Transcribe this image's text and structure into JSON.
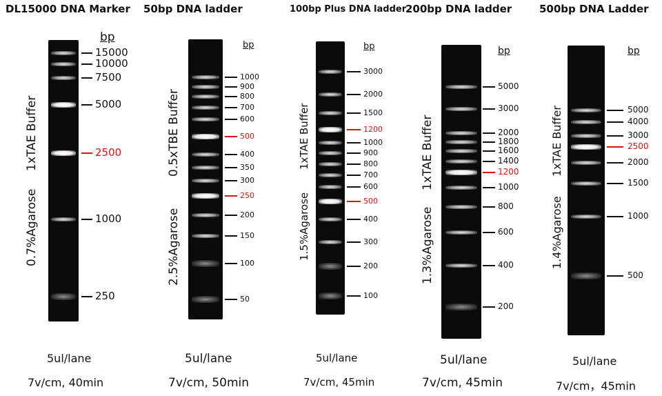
{
  "panels": [
    {
      "title": "DL15000 DNA Marker",
      "bp_label": "bp",
      "buffer": "1xTAE Buffer",
      "agarose": "0.7%Agarose",
      "lane_volume": "5ul/lane",
      "run_conditions": "7v/cm, 40min",
      "markers": [
        {
          "label": "15000",
          "highlight": false
        },
        {
          "label": "10000",
          "highlight": false
        },
        {
          "label": "7500",
          "highlight": false
        },
        {
          "label": "5000",
          "highlight": false
        },
        {
          "label": "2500",
          "highlight": true
        },
        {
          "label": "1000",
          "highlight": false
        },
        {
          "label": "250",
          "highlight": false
        }
      ]
    },
    {
      "title": "50bp DNA ladder",
      "bp_label": "bp",
      "buffer": "0.5xTBE Buffer",
      "agarose": "2.5%Agarose",
      "lane_volume": "5ul/lane",
      "run_conditions": "7v/cm, 50min",
      "markers": [
        {
          "label": "1000",
          "highlight": false
        },
        {
          "label": "900",
          "highlight": false
        },
        {
          "label": "800",
          "highlight": false
        },
        {
          "label": "700",
          "highlight": false
        },
        {
          "label": "600",
          "highlight": false
        },
        {
          "label": "500",
          "highlight": true
        },
        {
          "label": "400",
          "highlight": false
        },
        {
          "label": "350",
          "highlight": false
        },
        {
          "label": "300",
          "highlight": false
        },
        {
          "label": "250",
          "highlight": true
        },
        {
          "label": "200",
          "highlight": false
        },
        {
          "label": "150",
          "highlight": false
        },
        {
          "label": "100",
          "highlight": false
        },
        {
          "label": "50",
          "highlight": false
        }
      ]
    },
    {
      "title": "100bp Plus DNA ladder",
      "bp_label": "bp",
      "buffer": "1xTAE Buffer",
      "agarose": "1.5%Agarose",
      "lane_volume": "5ul/lane",
      "run_conditions": "7v/cm, 45min",
      "markers": [
        {
          "label": "3000",
          "highlight": false
        },
        {
          "label": "2000",
          "highlight": false
        },
        {
          "label": "1500",
          "highlight": false
        },
        {
          "label": "1200",
          "highlight": true
        },
        {
          "label": "1000",
          "highlight": false
        },
        {
          "label": "900",
          "highlight": false
        },
        {
          "label": "800",
          "highlight": false
        },
        {
          "label": "700",
          "highlight": false
        },
        {
          "label": "600",
          "highlight": false
        },
        {
          "label": "500",
          "highlight": true
        },
        {
          "label": "400",
          "highlight": false
        },
        {
          "label": "300",
          "highlight": false
        },
        {
          "label": "200",
          "highlight": false
        },
        {
          "label": "100",
          "highlight": false
        }
      ]
    },
    {
      "title": "200bp DNA ladder",
      "bp_label": "bp",
      "buffer": "1xTAE Buffer",
      "agarose": "1.3%Agarose",
      "lane_volume": "5ul/lane",
      "run_conditions": "7v/cm, 45min",
      "markers": [
        {
          "label": "5000",
          "highlight": false
        },
        {
          "label": "3000",
          "highlight": false
        },
        {
          "label": "2000",
          "highlight": false
        },
        {
          "label": "1800",
          "highlight": false
        },
        {
          "label": "1600",
          "highlight": false
        },
        {
          "label": "1400",
          "highlight": false
        },
        {
          "label": "1200",
          "highlight": true
        },
        {
          "label": "1000",
          "highlight": false
        },
        {
          "label": "800",
          "highlight": false
        },
        {
          "label": "600",
          "highlight": false
        },
        {
          "label": "400",
          "highlight": false
        },
        {
          "label": "200",
          "highlight": false
        }
      ]
    },
    {
      "title": "500bp DNA Ladder",
      "bp_label": "bp",
      "buffer": "1xTAE Buffer",
      "agarose": "1.4%Agarose",
      "lane_volume": "5ul/lane",
      "run_conditions": "7v/cm，45min",
      "markers": [
        {
          "label": "5000",
          "highlight": false
        },
        {
          "label": "4000",
          "highlight": false
        },
        {
          "label": "3000",
          "highlight": false
        },
        {
          "label": "2500",
          "highlight": true
        },
        {
          "label": "2000",
          "highlight": false
        },
        {
          "label": "1500",
          "highlight": false
        },
        {
          "label": "1000",
          "highlight": false
        },
        {
          "label": "500",
          "highlight": false
        }
      ]
    }
  ],
  "colors": {
    "highlight": "#e01010",
    "gel": "#0b0b0b",
    "text": "#111111"
  }
}
